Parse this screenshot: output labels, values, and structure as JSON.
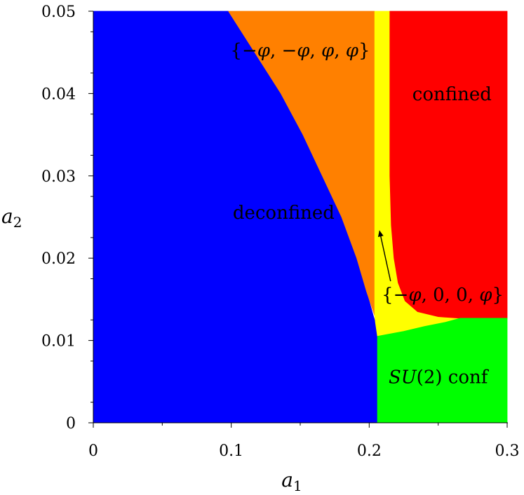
{
  "chart_data": {
    "type": "area",
    "title": "",
    "xlabel": "a",
    "xlabel_sub": "1",
    "ylabel": "a",
    "ylabel_sub": "2",
    "xlim": [
      0,
      0.3
    ],
    "ylim": [
      0,
      0.05
    ],
    "xticks": [
      "0",
      "0.1",
      "0.2",
      "0.3"
    ],
    "yticks": [
      "0",
      "0.01",
      "0.02",
      "0.03",
      "0.04",
      "0.05"
    ],
    "grid": false,
    "colors": {
      "deconfined": "#0000ff",
      "phi_pair": "#ff8000",
      "phi_zero": "#ffff00",
      "confined": "#ff0000",
      "su2_conf": "#00ff00"
    },
    "regions": [
      {
        "name": "deconfined",
        "label": "deconfined",
        "color": "#0000ff",
        "label_at": [
          0.138,
          0.0248
        ],
        "boundary": [
          [
            0,
            0
          ],
          [
            0.206,
            0
          ],
          [
            0.206,
            0.0105
          ],
          [
            0.2045,
            0.0122
          ],
          [
            0.203,
            0.013
          ],
          [
            0.198,
            0.016
          ],
          [
            0.191,
            0.02
          ],
          [
            0.18,
            0.025
          ],
          [
            0.166,
            0.03
          ],
          [
            0.152,
            0.035
          ],
          [
            0.136,
            0.04
          ],
          [
            0.117,
            0.045
          ],
          [
            0.098,
            0.05
          ],
          [
            0,
            0.05
          ]
        ]
      },
      {
        "name": "phi-pair",
        "label": "{−φ, −φ, φ, φ}",
        "color": "#ff8000",
        "label_at": [
          0.15,
          0.0445
        ],
        "boundary": [
          [
            0.098,
            0.05
          ],
          [
            0.204,
            0.05
          ],
          [
            0.204,
            0.013
          ],
          [
            0.198,
            0.016
          ],
          [
            0.191,
            0.02
          ],
          [
            0.18,
            0.025
          ],
          [
            0.166,
            0.03
          ],
          [
            0.152,
            0.035
          ],
          [
            0.136,
            0.04
          ],
          [
            0.117,
            0.045
          ]
        ]
      },
      {
        "name": "phi-zero",
        "label": "{−φ, 0, 0, φ}",
        "color": "#ffff00",
        "label_at": [
          0.209,
          0.0148
        ],
        "boundary": [
          [
            0.204,
            0.05
          ],
          [
            0.215,
            0.05
          ],
          [
            0.215,
            0.03
          ],
          [
            0.216,
            0.024
          ],
          [
            0.218,
            0.02
          ],
          [
            0.221,
            0.017
          ],
          [
            0.226,
            0.0148
          ],
          [
            0.235,
            0.0135
          ],
          [
            0.25,
            0.0129
          ],
          [
            0.266,
            0.0127
          ],
          [
            0.255,
            0.0122
          ],
          [
            0.24,
            0.0117
          ],
          [
            0.225,
            0.0111
          ],
          [
            0.212,
            0.0107
          ],
          [
            0.206,
            0.0105
          ],
          [
            0.2045,
            0.0122
          ],
          [
            0.204,
            0.013
          ]
        ]
      },
      {
        "name": "confined",
        "label": "confined",
        "color": "#ff0000",
        "label_at": [
          0.26,
          0.0392
        ],
        "boundary": [
          [
            0.215,
            0.05
          ],
          [
            0.3,
            0.05
          ],
          [
            0.3,
            0.0127
          ],
          [
            0.266,
            0.0127
          ],
          [
            0.25,
            0.0129
          ],
          [
            0.235,
            0.0135
          ],
          [
            0.226,
            0.0148
          ],
          [
            0.221,
            0.017
          ],
          [
            0.218,
            0.02
          ],
          [
            0.216,
            0.024
          ],
          [
            0.215,
            0.03
          ]
        ]
      },
      {
        "name": "su2-conf",
        "label_math": "SU",
        "label_paren": "(2)",
        "label_text": " conf",
        "color": "#00ff00",
        "label_at": [
          0.25,
          0.0048
        ],
        "boundary": [
          [
            0.206,
            0
          ],
          [
            0.3,
            0
          ],
          [
            0.3,
            0.0127
          ],
          [
            0.266,
            0.0127
          ],
          [
            0.255,
            0.0122
          ],
          [
            0.24,
            0.0117
          ],
          [
            0.225,
            0.0111
          ],
          [
            0.212,
            0.0107
          ],
          [
            0.206,
            0.0105
          ]
        ]
      }
    ],
    "annotations": [
      {
        "type": "arrow",
        "from": [
          0.2155,
          0.0172
        ],
        "to": [
          0.2075,
          0.0233
        ]
      }
    ]
  }
}
